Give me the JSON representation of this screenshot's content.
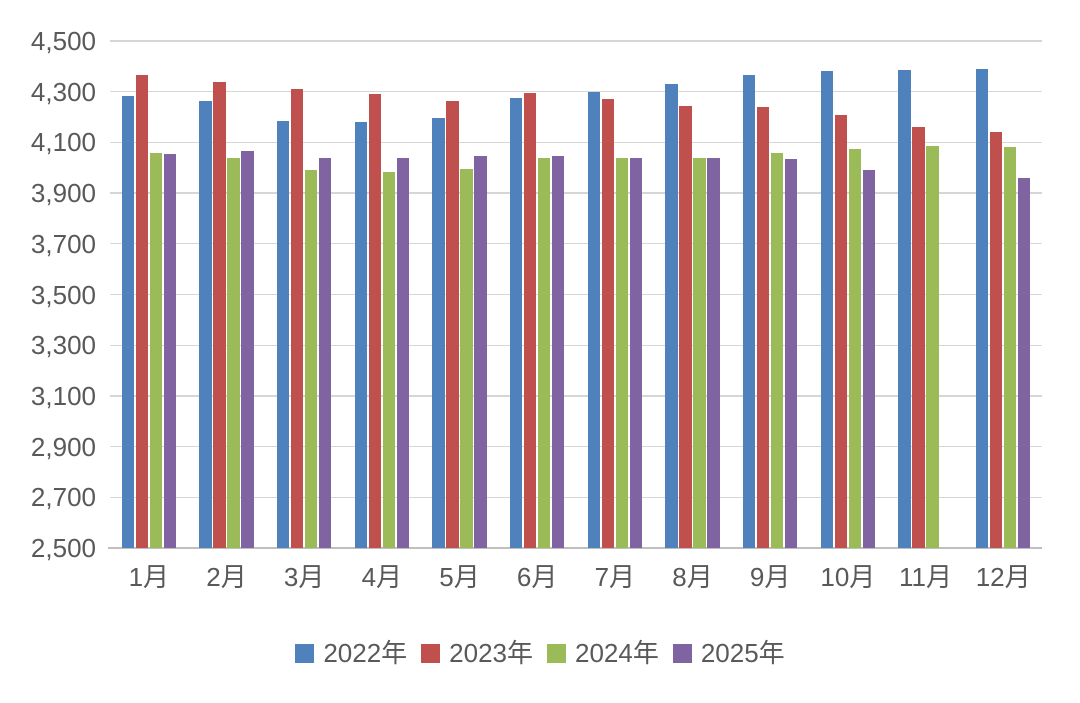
{
  "chart_data": {
    "type": "bar",
    "title": "",
    "xlabel": "",
    "ylabel": "",
    "categories": [
      "1月",
      "2月",
      "3月",
      "4月",
      "5月",
      "6月",
      "7月",
      "8月",
      "9月",
      "10月",
      "11月",
      "12月"
    ],
    "series": [
      {
        "name": "2022年",
        "color": "#4F81BD",
        "values": [
          4285,
          4265,
          4185,
          4180,
          4195,
          4275,
          4300,
          4330,
          4365,
          4380,
          4385,
          4390
        ]
      },
      {
        "name": "2023年",
        "color": "#C0504D",
        "values": [
          4365,
          4340,
          4310,
          4290,
          4265,
          4295,
          4270,
          4245,
          4240,
          4210,
          4160,
          4140
        ]
      },
      {
        "name": "2024年",
        "color": "#9BBB59",
        "values": [
          4060,
          4040,
          3990,
          3985,
          3995,
          4040,
          4040,
          4040,
          4060,
          4075,
          4085,
          4080
        ]
      },
      {
        "name": "2025年",
        "color": "#8064A2",
        "values": [
          4055,
          4065,
          4040,
          4040,
          4045,
          4045,
          4040,
          4040,
          4035,
          3990,
          null,
          3960
        ]
      }
    ],
    "ylim": [
      2500,
      4500
    ],
    "ytick_step": 200,
    "ytick_labels": [
      "2,500",
      "2,700",
      "2,900",
      "3,100",
      "3,300",
      "3,500",
      "3,700",
      "3,900",
      "4,100",
      "4,300",
      "4,500"
    ],
    "grid": true,
    "legend_position": "bottom",
    "legend_entries": [
      "2022年",
      "2023年",
      "2024年",
      "2025年"
    ]
  },
  "colors": {
    "background": "#FFFFFF",
    "gridline": "#D6D6D6",
    "axis_line": "#BFBFBF",
    "text": "#595959"
  }
}
